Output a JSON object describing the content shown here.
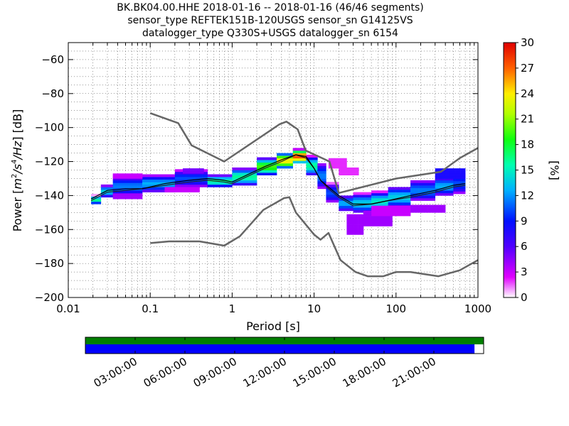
{
  "header": {
    "line1": "BK.BK04.00.HHE   2018-01-16 -- 2018-01-16  (46/46 segments)",
    "line2": "sensor_type REFTEK151B-120USGS sensor_sn G14125VS",
    "line3": "datalogger_type Q330S+USGS datalogger_sn 6154"
  },
  "chart_data": {
    "type": "heatmap",
    "xlabel": "Period [s]",
    "ylabel": "Power [m²/s⁴/Hz] [dB]",
    "ylabel_parts": {
      "prefix": "Power ",
      "unit": "m",
      "exp1": "2",
      "mid1": "/s",
      "exp2": "4",
      "mid2": "/Hz",
      "suffix": " [dB]"
    },
    "xscale": "log",
    "xlim": [
      0.01,
      1000
    ],
    "ylim": [
      -200,
      -50
    ],
    "x_ticks": [
      {
        "value": 0.01,
        "label": "0.01"
      },
      {
        "value": 0.1,
        "label": "0.1"
      },
      {
        "value": 1,
        "label": "1"
      },
      {
        "value": 10,
        "label": "10"
      },
      {
        "value": 100,
        "label": "100"
      },
      {
        "value": 1000,
        "label": "1000"
      }
    ],
    "y_ticks": [
      {
        "value": -60,
        "label": "−60"
      },
      {
        "value": -80,
        "label": "−80"
      },
      {
        "value": -100,
        "label": "−100"
      },
      {
        "value": -120,
        "label": "−120"
      },
      {
        "value": -140,
        "label": "−140"
      },
      {
        "value": -160,
        "label": "−160"
      },
      {
        "value": -180,
        "label": "−180"
      },
      {
        "value": -200,
        "label": "−200"
      }
    ],
    "grid": true,
    "colorbar": {
      "label": "[%]",
      "min": 0,
      "max": 30,
      "ticks": [
        {
          "value": 0,
          "label": "0"
        },
        {
          "value": 3,
          "label": "3"
        },
        {
          "value": 6,
          "label": "6"
        },
        {
          "value": 9,
          "label": "9"
        },
        {
          "value": 12,
          "label": "12"
        },
        {
          "value": 15,
          "label": "15"
        },
        {
          "value": 18,
          "label": "18"
        },
        {
          "value": 21,
          "label": "21"
        },
        {
          "value": 24,
          "label": "24"
        },
        {
          "value": 27,
          "label": "27"
        },
        {
          "value": 30,
          "label": "30"
        }
      ]
    },
    "nhnm_curve": [
      [
        0.1,
        -168
      ],
      [
        0.17,
        -167
      ],
      [
        0.4,
        -167
      ],
      [
        0.8,
        -169.5
      ],
      [
        1.24,
        -164
      ],
      [
        2.4,
        -148.5
      ],
      [
        4.3,
        -141.5
      ],
      [
        5.0,
        -141
      ],
      [
        6.0,
        -150
      ],
      [
        10,
        -163
      ],
      [
        12,
        -166
      ],
      [
        15,
        -162
      ],
      [
        21,
        -178
      ],
      [
        32,
        -185
      ],
      [
        45,
        -187.5
      ],
      [
        70,
        -187.5
      ],
      [
        100,
        -185
      ],
      [
        150,
        -185
      ],
      [
        330,
        -187.5
      ],
      [
        600,
        -184
      ],
      [
        1000,
        -178
      ]
    ],
    "nlnm_curve": [
      [
        0.1,
        -91.5
      ],
      [
        0.22,
        -97.4
      ],
      [
        0.32,
        -110.5
      ],
      [
        0.8,
        -120
      ],
      [
        3.8,
        -98
      ],
      [
        4.6,
        -96.5
      ],
      [
        6.3,
        -101
      ],
      [
        7.9,
        -113.5
      ],
      [
        15.4,
        -120
      ],
      [
        20,
        -138.5
      ],
      [
        100,
        -130
      ],
      [
        354,
        -126
      ],
      [
        600,
        -118
      ],
      [
        1000,
        -112
      ]
    ],
    "mean_curve": [
      [
        0.019,
        -142
      ],
      [
        0.03,
        -137
      ],
      [
        0.05,
        -136
      ],
      [
        0.08,
        -136
      ],
      [
        0.15,
        -133
      ],
      [
        0.3,
        -131
      ],
      [
        0.5,
        -130
      ],
      [
        0.8,
        -131
      ],
      [
        1.0,
        -132
      ],
      [
        1.5,
        -128
      ],
      [
        2.5,
        -123
      ],
      [
        4,
        -119
      ],
      [
        6,
        -116
      ],
      [
        8,
        -117
      ],
      [
        10,
        -124
      ],
      [
        12,
        -131
      ],
      [
        15,
        -135
      ],
      [
        20,
        -140
      ],
      [
        30,
        -145
      ],
      [
        50,
        -145
      ],
      [
        80,
        -143
      ],
      [
        150,
        -140
      ],
      [
        300,
        -137
      ],
      [
        500,
        -134
      ],
      [
        700,
        -133
      ]
    ],
    "mode_curve": [
      [
        0.019,
        -143
      ],
      [
        0.03,
        -138
      ],
      [
        0.05,
        -137
      ],
      [
        0.08,
        -136
      ],
      [
        0.15,
        -134
      ],
      [
        0.3,
        -132
      ],
      [
        0.5,
        -131
      ],
      [
        0.8,
        -132
      ],
      [
        1.0,
        -133
      ],
      [
        1.5,
        -129
      ],
      [
        2.5,
        -124
      ],
      [
        4,
        -120
      ],
      [
        6,
        -116
      ],
      [
        8,
        -118
      ],
      [
        10,
        -124
      ],
      [
        12,
        -131
      ],
      [
        15,
        -136
      ],
      [
        20,
        -141
      ],
      [
        30,
        -146
      ],
      [
        50,
        -145
      ],
      [
        80,
        -143
      ],
      [
        150,
        -141
      ],
      [
        300,
        -138
      ],
      [
        500,
        -135
      ],
      [
        700,
        -134
      ]
    ],
    "density_bands": [
      {
        "x0": 0.019,
        "x1": 0.025,
        "ylo": -145,
        "yhi": -140,
        "pct": 14
      },
      {
        "x0": 0.025,
        "x1": 0.035,
        "ylo": -141,
        "yhi": -134,
        "pct": 12
      },
      {
        "x0": 0.035,
        "x1": 0.08,
        "ylo": -140,
        "yhi": -129,
        "pct": 10
      },
      {
        "x0": 0.08,
        "x1": 0.2,
        "ylo": -138,
        "yhi": -128,
        "pct": 11
      },
      {
        "x0": 0.2,
        "x1": 0.5,
        "ylo": -135,
        "yhi": -125,
        "pct": 9
      },
      {
        "x0": 0.5,
        "x1": 1.0,
        "ylo": -135,
        "yhi": -128,
        "pct": 14
      },
      {
        "x0": 1.0,
        "x1": 2.0,
        "ylo": -134,
        "yhi": -124,
        "pct": 14
      },
      {
        "x0": 2.0,
        "x1": 3.5,
        "ylo": -128,
        "yhi": -118,
        "pct": 17
      },
      {
        "x0": 3.5,
        "x1": 5.5,
        "ylo": -124,
        "yhi": -115,
        "pct": 21
      },
      {
        "x0": 5.5,
        "x1": 8.0,
        "ylo": -121,
        "yhi": -113,
        "pct": 24
      },
      {
        "x0": 8.0,
        "x1": 11,
        "ylo": -128,
        "yhi": -117,
        "pct": 14
      },
      {
        "x0": 11,
        "x1": 14,
        "ylo": -136,
        "yhi": -121,
        "pct": 10
      },
      {
        "x0": 14,
        "x1": 20,
        "ylo": -144,
        "yhi": -133,
        "pct": 9
      },
      {
        "x0": 20,
        "x1": 30,
        "ylo": -149,
        "yhi": -140,
        "pct": 11
      },
      {
        "x0": 30,
        "x1": 50,
        "ylo": -150,
        "yhi": -139,
        "pct": 12
      },
      {
        "x0": 50,
        "x1": 80,
        "ylo": -149,
        "yhi": -138,
        "pct": 13
      },
      {
        "x0": 80,
        "x1": 150,
        "ylo": -147,
        "yhi": -135,
        "pct": 12
      },
      {
        "x0": 150,
        "x1": 300,
        "ylo": -143,
        "yhi": -131,
        "pct": 10
      },
      {
        "x0": 300,
        "x1": 500,
        "ylo": -140,
        "yhi": -129,
        "pct": 11
      },
      {
        "x0": 500,
        "x1": 700,
        "ylo": -139,
        "yhi": -127,
        "pct": 9
      }
    ],
    "outlier_bands": [
      {
        "x0": 0.035,
        "x1": 0.08,
        "ylo": -130,
        "yhi": -127,
        "pct": 3
      },
      {
        "x0": 0.035,
        "x1": 0.08,
        "ylo": -142,
        "yhi": -139,
        "pct": 4
      },
      {
        "x0": 0.15,
        "x1": 0.4,
        "ylo": -138,
        "yhi": -135,
        "pct": 3
      },
      {
        "x0": 0.25,
        "x1": 0.45,
        "ylo": -127,
        "yhi": -124,
        "pct": 5
      },
      {
        "x0": 15,
        "x1": 25,
        "ylo": -124,
        "yhi": -118,
        "pct": 2
      },
      {
        "x0": 20,
        "x1": 35,
        "ylo": -128,
        "yhi": -124,
        "pct": 2
      },
      {
        "x0": 25,
        "x1": 40,
        "ylo": -163,
        "yhi": -152,
        "pct": 4
      },
      {
        "x0": 40,
        "x1": 90,
        "ylo": -158,
        "yhi": -150,
        "pct": 4
      },
      {
        "x0": 50,
        "x1": 150,
        "ylo": -152,
        "yhi": -147,
        "pct": 3
      },
      {
        "x0": 150,
        "x1": 400,
        "ylo": -150,
        "yhi": -146,
        "pct": 4
      },
      {
        "x0": 300,
        "x1": 700,
        "ylo": -130,
        "yhi": -125,
        "pct": 8
      }
    ]
  },
  "data_availability": {
    "top_bar_color": "#007f00",
    "bottom_bar_color": "#0000ff",
    "coverage_fraction": 0.977,
    "time_labels": [
      "03:00:00",
      "06:00:00",
      "09:00:00",
      "12:00:00",
      "15:00:00",
      "18:00:00",
      "21:00:00"
    ]
  }
}
